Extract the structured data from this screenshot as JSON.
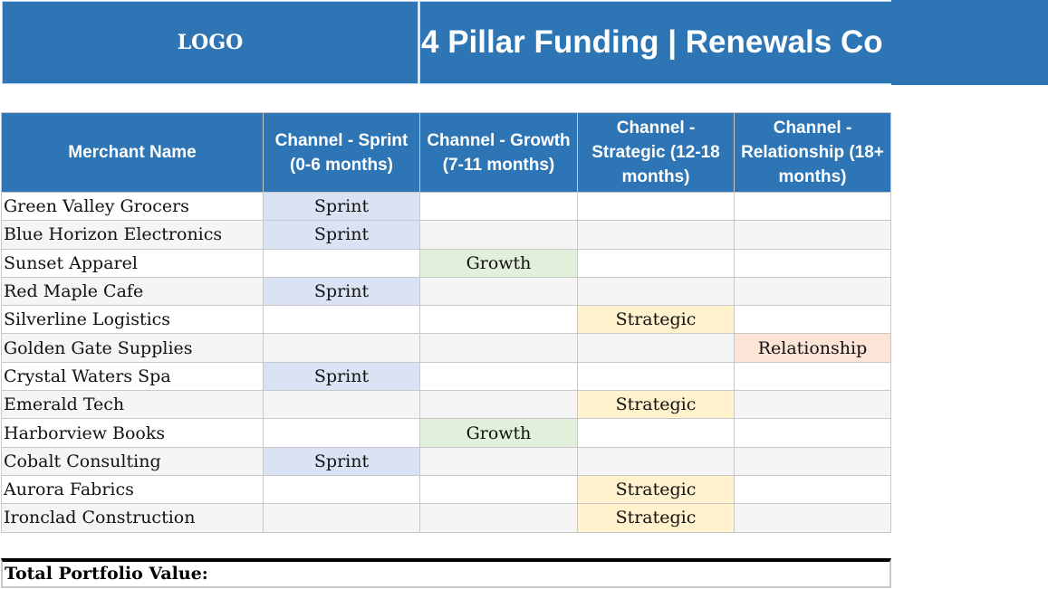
{
  "header": {
    "logo_label": "LOGO",
    "title": "4 Pillar Funding | Renewals Co",
    "background_color": "#2e75b6"
  },
  "table": {
    "columns": [
      "Merchant Name",
      "Channel - Sprint (0-6 months)",
      "Channel - Growth (7-11 months)",
      "Channel - Strategic (12-18 months)",
      "Channel - Relationship (18+ months)"
    ],
    "rows": [
      {
        "merchant": "Green Valley Grocers",
        "sprint": "Sprint",
        "growth": "",
        "strategic": "",
        "relationship": ""
      },
      {
        "merchant": "Blue Horizon Electronics",
        "sprint": "Sprint",
        "growth": "",
        "strategic": "",
        "relationship": ""
      },
      {
        "merchant": "Sunset Apparel",
        "sprint": "",
        "growth": "Growth",
        "strategic": "",
        "relationship": ""
      },
      {
        "merchant": "Red Maple Cafe",
        "sprint": "Sprint",
        "growth": "",
        "strategic": "",
        "relationship": ""
      },
      {
        "merchant": "Silverline Logistics",
        "sprint": "",
        "growth": "",
        "strategic": "Strategic",
        "relationship": ""
      },
      {
        "merchant": "Golden Gate Supplies",
        "sprint": "",
        "growth": "",
        "strategic": "",
        "relationship": "Relationship"
      },
      {
        "merchant": "Crystal Waters Spa",
        "sprint": "Sprint",
        "growth": "",
        "strategic": "",
        "relationship": ""
      },
      {
        "merchant": "Emerald Tech",
        "sprint": "",
        "growth": "",
        "strategic": "Strategic",
        "relationship": ""
      },
      {
        "merchant": "Harborview Books",
        "sprint": "",
        "growth": "Growth",
        "strategic": "",
        "relationship": ""
      },
      {
        "merchant": "Cobalt Consulting",
        "sprint": "Sprint",
        "growth": "",
        "strategic": "",
        "relationship": ""
      },
      {
        "merchant": "Aurora Fabrics",
        "sprint": "",
        "growth": "",
        "strategic": "Strategic",
        "relationship": ""
      },
      {
        "merchant": "Ironclad Construction",
        "sprint": "",
        "growth": "",
        "strategic": "Strategic",
        "relationship": ""
      }
    ],
    "channel_colors": {
      "sprint": "#dae3f3",
      "growth": "#e2efda",
      "strategic": "#fff2cc",
      "relationship": "#fce4d6"
    }
  },
  "footer": {
    "total_label": "Total Portfolio Value:"
  }
}
